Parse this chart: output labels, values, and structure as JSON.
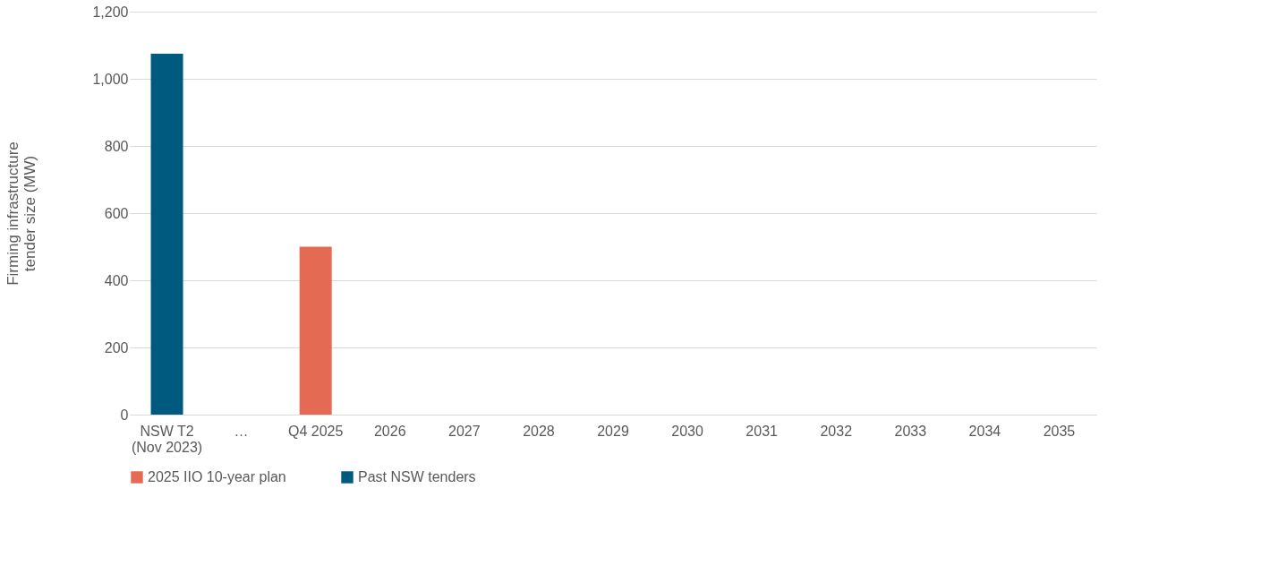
{
  "chart_data": {
    "type": "bar",
    "ylabel": "Firming infrastructure\ntender size (MW)",
    "categories": [
      "NSW T2\n(Nov 2023)",
      "…",
      "Q4 2025",
      "2026",
      "2027",
      "2028",
      "2029",
      "2030",
      "2031",
      "2032",
      "2033",
      "2034",
      "2035"
    ],
    "series": [
      {
        "name": "2025 IIO 10-year plan",
        "color": "#e56a54",
        "values": [
          null,
          null,
          500,
          null,
          null,
          null,
          null,
          null,
          null,
          null,
          null,
          null,
          null
        ]
      },
      {
        "name": "Past NSW tenders",
        "color": "#005a80",
        "values": [
          1075,
          null,
          null,
          null,
          null,
          null,
          null,
          null,
          null,
          null,
          null,
          null,
          null
        ]
      }
    ],
    "ylim": [
      0,
      1200
    ],
    "yticks": [
      0,
      200,
      400,
      600,
      800,
      {
        "value": 1000,
        "label": "1,000"
      },
      {
        "value": 1200,
        "label": "1,200"
      }
    ],
    "grid": "y",
    "legend": "bottom"
  }
}
